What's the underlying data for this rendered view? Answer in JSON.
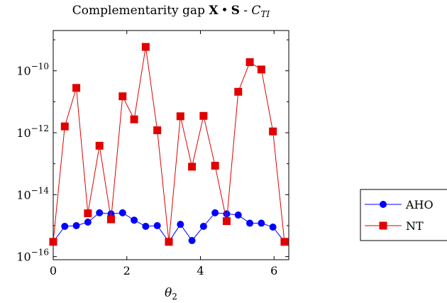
{
  "chart_data": {
    "type": "line",
    "title": {
      "prefix": "Complementarity gap ",
      "bold_x": "X",
      "bullet": "•",
      "bold_s": "S",
      "dash": " - ",
      "calC": "C",
      "sub": "TI"
    },
    "xlabel": {
      "symbol": "θ",
      "sub": "2"
    },
    "ylabel": "",
    "xlim": [
      0,
      6.4
    ],
    "ylim_log10": [
      -16.1,
      -8.7
    ],
    "y_scale": "log",
    "grid": false,
    "legend_position": "outside-right",
    "x_ticks": [
      0,
      2,
      4,
      6
    ],
    "x_tick_labels": [
      "0",
      "2",
      "4",
      "6"
    ],
    "y_ticks_log10": [
      -16,
      -14,
      -12,
      -10
    ],
    "y_tick_labels": [
      {
        "base": "10",
        "exp": "−16"
      },
      {
        "base": "10",
        "exp": "−14"
      },
      {
        "base": "10",
        "exp": "−12"
      },
      {
        "base": "10",
        "exp": "−10"
      }
    ],
    "x": [
      0,
      0.314,
      0.628,
      0.942,
      1.257,
      1.571,
      1.885,
      2.199,
      2.513,
      2.827,
      3.142,
      3.456,
      3.77,
      4.084,
      4.398,
      4.712,
      5.027,
      5.341,
      5.655,
      5.969,
      6.283
    ],
    "series": [
      {
        "name": "AHO",
        "color": "#0000ff",
        "marker": "circle",
        "values": [
          3e-16,
          9.5e-16,
          1e-15,
          1.3e-15,
          2.6e-15,
          2.4e-15,
          2.6e-15,
          1.5e-15,
          9.5e-16,
          1e-15,
          3e-16,
          1.1e-15,
          3.3e-16,
          9.5e-16,
          2.6e-15,
          2.4e-15,
          2.2e-15,
          1.2e-15,
          1.2e-15,
          9e-16,
          3e-16
        ]
      },
      {
        "name": "NT",
        "color": "#e00000",
        "marker": "square",
        "values": [
          3e-16,
          1.6e-12,
          2.8e-11,
          2.5e-15,
          3.8e-13,
          1.6e-15,
          1.5e-11,
          2.7e-12,
          5.9e-10,
          1.2e-12,
          3e-16,
          3.4e-12,
          8e-14,
          3.5e-12,
          8.6e-14,
          1.4e-15,
          2.1e-11,
          1.9e-10,
          1.1e-10,
          1.1e-12,
          3e-16
        ]
      }
    ]
  }
}
